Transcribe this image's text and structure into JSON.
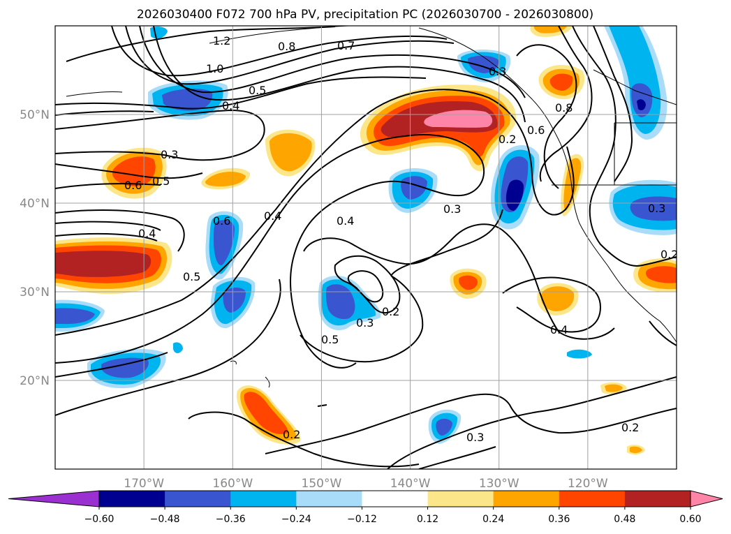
{
  "title": "2026030400 F072 700 hPa PV, precipitation PC (2026030700 - 2026030800)",
  "map": {
    "lon_range": [
      -180,
      -110
    ],
    "lat_range": [
      10,
      60
    ],
    "lon_ticks": [
      {
        "value": -170,
        "label": "170°W"
      },
      {
        "value": -160,
        "label": "160°W"
      },
      {
        "value": -150,
        "label": "150°W"
      },
      {
        "value": -140,
        "label": "140°W"
      },
      {
        "value": -130,
        "label": "130°W"
      },
      {
        "value": -120,
        "label": "120°W"
      }
    ],
    "lat_ticks": [
      {
        "value": 20,
        "label": "20°N"
      },
      {
        "value": 30,
        "label": "30°N"
      },
      {
        "value": 40,
        "label": "40°N"
      },
      {
        "value": 50,
        "label": "50°N"
      }
    ]
  },
  "colorbar": {
    "levels": [
      "−0.60",
      "−0.48",
      "−0.36",
      "−0.24",
      "−0.12",
      "0.12",
      "0.24",
      "0.36",
      "0.48",
      "0.60"
    ],
    "colors": [
      "#9b30d0",
      "#000090",
      "#3a55d0",
      "#00b4f0",
      "#a8dcf8",
      "#ffffff",
      "#fce68a",
      "#ffa500",
      "#ff4500",
      "#b22222",
      "#ff85a8"
    ]
  },
  "contour_labels": [
    "1.2",
    "1.0",
    "0.8",
    "0.7",
    "0.5",
    "0.4",
    "0.3",
    "0.6",
    "0.5",
    "0.4",
    "0.6",
    "0.4",
    "0.5",
    "0.4",
    "0.3",
    "0.2",
    "0.6",
    "0.8",
    "0.3",
    "0.2",
    "0.5",
    "0.3",
    "0.2",
    "0.4",
    "0.2",
    "0.3",
    "0.2",
    "0.3"
  ],
  "colors": {
    "contour": "#000000",
    "grid": "#a0a0a0",
    "coast": "#000000"
  }
}
